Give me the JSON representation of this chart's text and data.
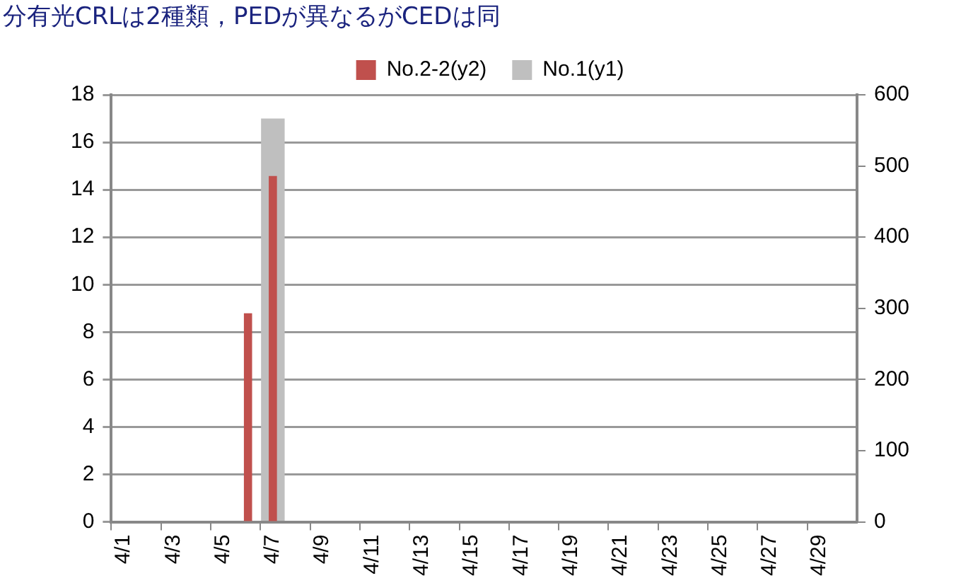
{
  "chart_data": {
    "type": "bar",
    "title": "分有光CRLは2種類，PEDが異なるがCEDは同",
    "categories": [
      "4/1",
      null,
      "4/3",
      null,
      "4/5",
      null,
      "4/7",
      null,
      "4/9",
      null,
      "4/11",
      null,
      "4/13",
      null,
      "4/15",
      null,
      "4/17",
      null,
      "4/19",
      null,
      "4/21",
      null,
      "4/23",
      null,
      "4/25",
      null,
      "4/27",
      null,
      "4/29",
      null
    ],
    "series": [
      {
        "name": "No.1(y1)",
        "color": "#bfbfbf",
        "values": [
          null,
          null,
          null,
          null,
          null,
          null,
          17,
          null,
          null,
          null,
          null,
          null,
          null,
          null,
          null,
          null,
          null,
          null,
          null,
          null,
          null,
          null,
          null,
          null,
          null,
          null,
          null,
          null,
          null,
          null
        ]
      },
      {
        "name": "No.2-2(y2)",
        "color": "#c0504d",
        "axis": "y2",
        "values": [
          null,
          null,
          null,
          null,
          null,
          293,
          486,
          null,
          null,
          null,
          null,
          null,
          null,
          null,
          null,
          null,
          null,
          null,
          null,
          null,
          null,
          null,
          null,
          null,
          null,
          null,
          null,
          null,
          null,
          null
        ]
      }
    ],
    "ylim": [
      0,
      18
    ],
    "yticks": [
      0,
      2,
      4,
      6,
      8,
      10,
      12,
      14,
      16,
      18
    ],
    "y2lim": [
      0,
      600
    ],
    "y2ticks": [
      0,
      100,
      200,
      300,
      400,
      500,
      600
    ],
    "grid": "y",
    "legend": "top"
  }
}
